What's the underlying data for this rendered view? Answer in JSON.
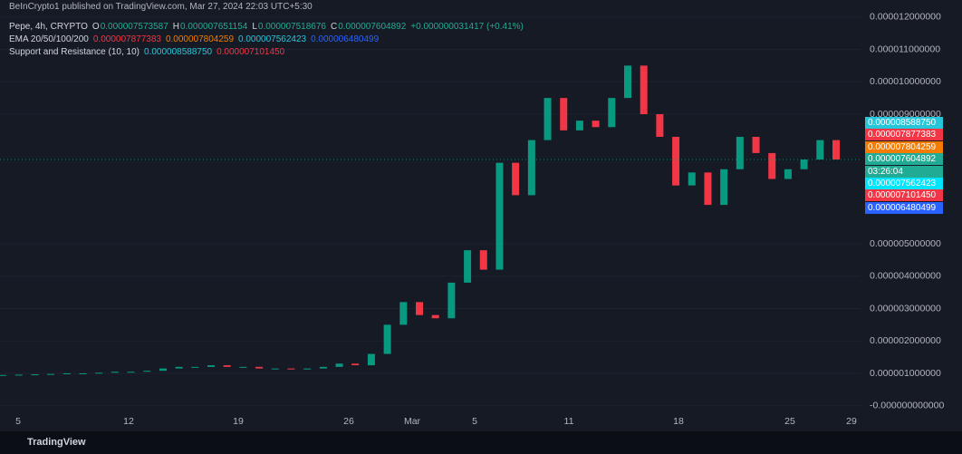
{
  "header": {
    "published": "BeInCrypto1 published on TradingView.com, Mar 27, 2024 22:03 UTC+5:30"
  },
  "legend": {
    "symbol": "Pepe, 4h, CRYPTO",
    "ohlc": [
      {
        "label": "O",
        "value": "0.000007573587"
      },
      {
        "label": "H",
        "value": "0.000007651154"
      },
      {
        "label": "L",
        "value": "0.000007518676"
      },
      {
        "label": "C",
        "value": "0.000007604892"
      }
    ],
    "change": "+0.000000031417 (+0.41%)"
  },
  "ema": {
    "name": "EMA 20/50/100/200",
    "values": [
      {
        "value": "0.000007877383",
        "color": "#f23645"
      },
      {
        "value": "0.000007804259",
        "color": "#f57c00"
      },
      {
        "value": "0.000007562423",
        "color": "#26c6da"
      },
      {
        "value": "0.000006480499",
        "color": "#2962ff"
      }
    ]
  },
  "sr": {
    "name": "Support and Resistance (10, 10)",
    "values": [
      {
        "value": "0.000008588750",
        "color": "#26c6da"
      },
      {
        "value": "0.000007101450",
        "color": "#f23645"
      }
    ]
  },
  "price_axis": {
    "ylim": [
      0,
      1.2e-05
    ],
    "ticks": [
      {
        "value": 1.2e-05,
        "label": "0.000012000000"
      },
      {
        "value": 1.1e-05,
        "label": "0.000011000000"
      },
      {
        "value": 1e-05,
        "label": "0.000010000000"
      },
      {
        "value": 9e-06,
        "label": "0.000009000000"
      },
      {
        "value": 5e-06,
        "label": "0.000005000000"
      },
      {
        "value": 4e-06,
        "label": "0.000004000000"
      },
      {
        "value": 3e-06,
        "label": "0.000003000000"
      },
      {
        "value": 2e-06,
        "label": "0.000002000000"
      },
      {
        "value": 1e-06,
        "label": "0.000001000000"
      },
      {
        "value": 0,
        "label": "-0.000000000000"
      }
    ]
  },
  "price_tags": [
    {
      "label": "0.000008588750",
      "color": "#26c6da"
    },
    {
      "label": "0.000007877383",
      "color": "#f23645"
    },
    {
      "label": "0.000007804259",
      "color": "#f57c00"
    },
    {
      "label": "0.000007604892",
      "color": "#22ab94",
      "timer": "03:26:04"
    },
    {
      "label": "0.000007562423",
      "color": "#00e5ff"
    },
    {
      "label": "0.000007101450",
      "color": "#f23645"
    },
    {
      "label": "0.000006480499",
      "color": "#2962ff"
    }
  ],
  "date_axis": [
    "5",
    "12",
    "19",
    "26",
    "Mar",
    "5",
    "11",
    "18",
    "25",
    "29"
  ],
  "price_series": {
    "values": [
      9.5e-07,
      9.6e-07,
      9.7e-07,
      9.8e-07,
      1e-06,
      1e-06,
      1.02e-06,
      1.05e-06,
      1.05e-06,
      1.08e-06,
      1.15e-06,
      1.2e-06,
      1.2e-06,
      1.25e-06,
      1.2e-06,
      1.2e-06,
      1.15e-06,
      1.15e-06,
      1.12e-06,
      1.15e-06,
      1.2e-06,
      1.3e-06,
      1.25e-06,
      1.6e-06,
      2.5e-06,
      3.2e-06,
      2.8e-06,
      2.7e-06,
      3.8e-06,
      4.8e-06,
      4.2e-06,
      7.5e-06,
      6.5e-06,
      8.2e-06,
      9.5e-06,
      8.5e-06,
      8.8e-06,
      8.6e-06,
      9.5e-06,
      1.05e-05,
      9e-06,
      8.3e-06,
      6.8e-06,
      7.2e-06,
      6.2e-06,
      7.3e-06,
      8.3e-06,
      7.8e-06,
      7e-06,
      7.3e-06,
      7.6e-06,
      8.2e-06,
      7.6e-06
    ],
    "up_color": "#089981",
    "down_color": "#f23645"
  },
  "brand": "TradingView"
}
